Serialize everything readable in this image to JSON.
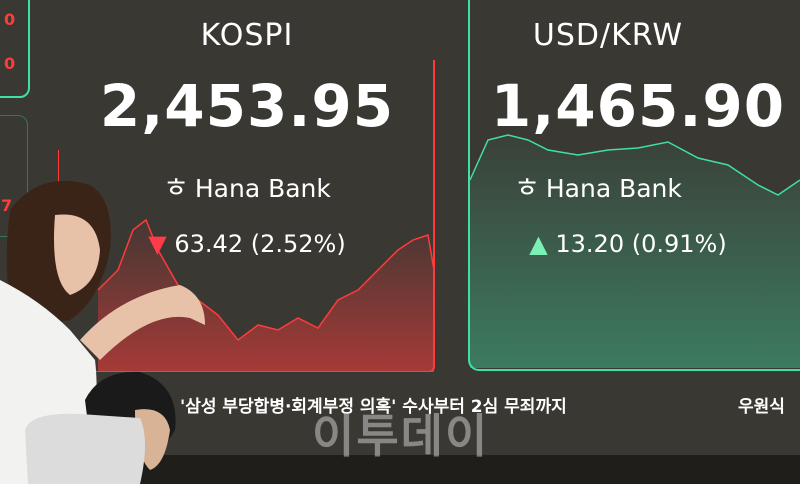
{
  "left_fragment": {
    "numbers": [
      "0",
      "0",
      "7"
    ]
  },
  "kospi": {
    "title": "KOSPI",
    "value": "2,453.95",
    "bank": "Hana Bank",
    "direction": "down",
    "change": "63.42 (2.52%)",
    "color": "#ff3b3b"
  },
  "usd_krw": {
    "title": "USD/KRW",
    "value": "1,465.90",
    "bank": "Hana Bank",
    "direction": "up",
    "change": "13.20 (0.91%)",
    "color": "#3fe0a0"
  },
  "ticker": {
    "headline": "'삼성 부당합병·회계부정 의혹' 수사부터 2심 무죄까지",
    "next": "우원식"
  },
  "watermark": "이투데이",
  "icons": {
    "down": "▼",
    "up": "▲",
    "hana_logo": "ㅎ"
  }
}
